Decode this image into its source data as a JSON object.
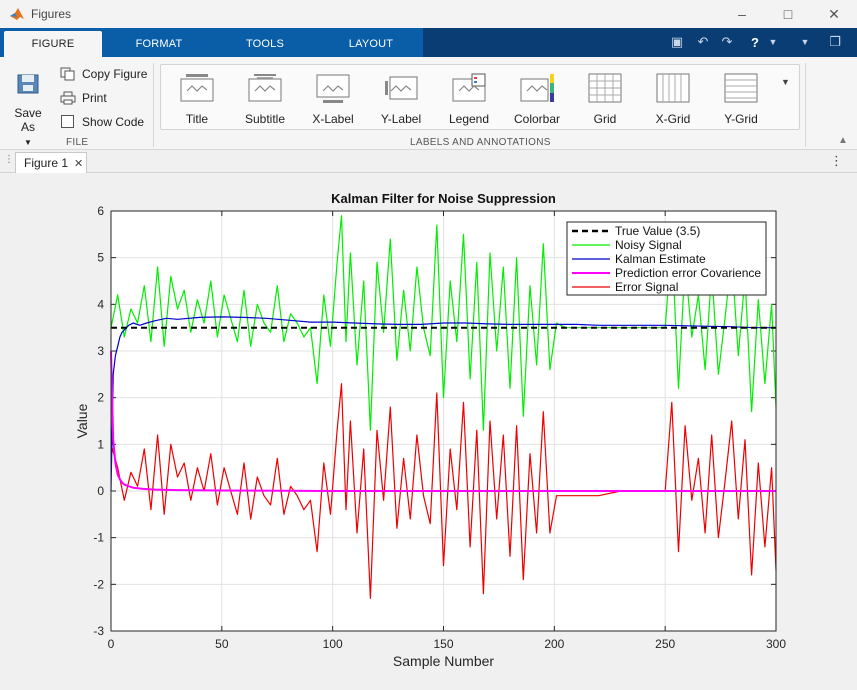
{
  "window": {
    "title": "Figures",
    "min_icon": "minimize-icon",
    "max_icon": "maximize-icon",
    "close_icon": "close-icon"
  },
  "tabs": [
    {
      "label": "FIGURE",
      "active": true
    },
    {
      "label": "FORMAT"
    },
    {
      "label": "TOOLS"
    },
    {
      "label": "LAYOUT"
    }
  ],
  "quick_access": [
    "save-icon",
    "undo-icon",
    "redo-icon",
    "help-icon",
    "collapse-icon",
    "undock-icon"
  ],
  "file_group": {
    "label": "FILE",
    "save_as": "Save As",
    "copy_figure": "Copy Figure",
    "print": "Print",
    "show_code": "Show Code"
  },
  "labels_group": {
    "label": "LABELS AND ANNOTATIONS",
    "items": [
      "Title",
      "Subtitle",
      "X-Label",
      "Y-Label",
      "Legend",
      "Colorbar",
      "Grid",
      "X-Grid",
      "Y-Grid"
    ]
  },
  "document_tab": {
    "label": "Figure 1"
  },
  "colors": {
    "true_value": "#000000",
    "noisy": "#00ff00",
    "kalman": "#0000cc",
    "pred_cov": "#ff00ff",
    "error": "#ff0000",
    "ribbon_blue": "#0a5ea8",
    "ribbon_dark": "#0b3d75"
  },
  "chart_data": {
    "type": "line",
    "title": "Kalman Filter for Noise Suppression",
    "xlabel": "Sample Number",
    "ylabel": "Value",
    "xlim": [
      0,
      300
    ],
    "ylim": [
      -3,
      6
    ],
    "xticks": [
      0,
      50,
      100,
      150,
      200,
      250,
      300
    ],
    "yticks": [
      -3,
      -2,
      -1,
      0,
      1,
      2,
      3,
      4,
      5,
      6
    ],
    "grid": true,
    "legend": "top-right",
    "series": [
      {
        "name": "True Value (3.5)",
        "style": "dashed",
        "color": "#000000",
        "x": [
          0,
          300
        ],
        "y": [
          3.5,
          3.5
        ]
      },
      {
        "name": "Noisy Signal",
        "color": "#00ee00",
        "x": [
          0,
          3,
          6,
          9,
          12,
          15,
          18,
          21,
          24,
          27,
          30,
          33,
          36,
          39,
          42,
          45,
          48,
          51,
          54,
          57,
          60,
          63,
          66,
          69,
          72,
          75,
          78,
          81,
          84,
          87,
          90,
          93,
          96,
          99,
          102,
          104,
          106,
          108,
          111,
          114,
          117,
          120,
          123,
          126,
          129,
          132,
          135,
          138,
          141,
          144,
          147,
          150,
          153,
          156,
          159,
          162,
          165,
          168,
          171,
          174,
          177,
          180,
          183,
          186,
          189,
          192,
          195,
          198,
          201,
          205,
          210,
          220,
          230,
          240,
          250,
          253,
          256,
          259,
          262,
          265,
          268,
          271,
          274,
          277,
          280,
          283,
          286,
          289,
          292,
          295,
          298,
          300
        ],
        "y": [
          3.5,
          4.2,
          3.3,
          3.9,
          3.6,
          4.4,
          3.2,
          4.8,
          3.1,
          4.6,
          3.9,
          4.3,
          3.4,
          4.1,
          3.6,
          4.5,
          3.3,
          4.2,
          3.7,
          3.2,
          4.3,
          3.1,
          4.0,
          3.6,
          3.4,
          4.4,
          3.2,
          3.8,
          3.6,
          3.3,
          3.5,
          2.3,
          4.2,
          3.1,
          4.9,
          5.9,
          3.2,
          5.1,
          2.7,
          4.5,
          1.3,
          4.9,
          3.4,
          5.4,
          2.8,
          4.3,
          3.0,
          4.8,
          3.5,
          2.9,
          5.7,
          2.0,
          4.5,
          3.2,
          5.5,
          2.4,
          4.9,
          1.3,
          5.1,
          3.0,
          4.8,
          2.2,
          5.0,
          1.6,
          4.4,
          2.7,
          5.3,
          2.6,
          3.6,
          3.5,
          3.5,
          3.5,
          3.5,
          3.5,
          3.5,
          5.4,
          2.2,
          4.9,
          3.3,
          4.2,
          2.6,
          4.7,
          2.5,
          3.7,
          5.0,
          2.9,
          4.6,
          1.7,
          4.1,
          2.3,
          4.0,
          1.8
        ]
      },
      {
        "name": "Kalman Estimate",
        "color": "#0000cc",
        "x": [
          0,
          1,
          2,
          3,
          4,
          5,
          6,
          7,
          8,
          10,
          13,
          16,
          20,
          25,
          30,
          40,
          50,
          60,
          70,
          80,
          90,
          100,
          110,
          120,
          130,
          140,
          150,
          160,
          170,
          180,
          190,
          200,
          210,
          220,
          230,
          240,
          250,
          260,
          270,
          280,
          290,
          300
        ],
        "y": [
          0,
          2.5,
          2.9,
          3.1,
          3.3,
          3.4,
          3.45,
          3.5,
          3.55,
          3.6,
          3.55,
          3.6,
          3.65,
          3.7,
          3.68,
          3.72,
          3.73,
          3.72,
          3.7,
          3.66,
          3.62,
          3.62,
          3.6,
          3.58,
          3.57,
          3.57,
          3.6,
          3.6,
          3.58,
          3.57,
          3.57,
          3.57,
          3.57,
          3.55,
          3.55,
          3.55,
          3.55,
          3.54,
          3.53,
          3.52,
          3.5,
          3.5
        ]
      },
      {
        "name": "Prediction error Covarience",
        "color": "#ff00ff",
        "x": [
          0,
          1,
          2,
          3,
          4,
          5,
          6,
          8,
          10,
          14,
          20,
          30,
          50,
          100,
          150,
          200,
          250,
          300
        ],
        "y": [
          3.0,
          1.1,
          0.6,
          0.35,
          0.25,
          0.18,
          0.14,
          0.1,
          0.07,
          0.05,
          0.03,
          0.02,
          0.01,
          0.0,
          0.0,
          0.0,
          0.0,
          0.0
        ]
      },
      {
        "name": "Error Signal",
        "color": "#ee0000",
        "x": [
          0,
          3,
          6,
          9,
          12,
          15,
          18,
          21,
          24,
          27,
          30,
          33,
          36,
          39,
          42,
          45,
          48,
          51,
          54,
          57,
          60,
          63,
          66,
          69,
          72,
          75,
          78,
          81,
          84,
          87,
          90,
          93,
          96,
          99,
          102,
          104,
          106,
          108,
          111,
          114,
          117,
          120,
          123,
          126,
          129,
          132,
          135,
          138,
          141,
          144,
          147,
          150,
          153,
          156,
          159,
          162,
          165,
          168,
          171,
          174,
          177,
          180,
          183,
          186,
          189,
          192,
          195,
          198,
          201,
          205,
          210,
          220,
          230,
          240,
          250,
          253,
          256,
          259,
          262,
          265,
          268,
          271,
          274,
          277,
          280,
          283,
          286,
          289,
          292,
          295,
          298,
          300
        ],
        "y": [
          1.0,
          0.5,
          -0.2,
          0.4,
          0.1,
          0.9,
          -0.4,
          1.2,
          -0.5,
          1.0,
          0.3,
          0.6,
          -0.2,
          0.5,
          0.0,
          0.8,
          -0.3,
          0.5,
          0.0,
          -0.5,
          0.6,
          -0.6,
          0.3,
          -0.1,
          -0.3,
          0.7,
          -0.5,
          0.1,
          -0.1,
          -0.4,
          -0.2,
          -1.3,
          0.6,
          -0.5,
          1.3,
          2.3,
          -0.4,
          1.5,
          -0.9,
          0.9,
          -2.3,
          1.3,
          -0.2,
          1.8,
          -0.8,
          0.7,
          -0.6,
          1.2,
          -0.1,
          -0.7,
          2.1,
          -1.6,
          0.9,
          -0.4,
          1.9,
          -1.2,
          1.3,
          -2.2,
          1.5,
          -0.6,
          1.2,
          -1.4,
          1.4,
          -1.9,
          0.8,
          -0.9,
          1.7,
          -0.9,
          -0.1,
          -0.1,
          -0.1,
          -0.1,
          0.0,
          0.0,
          0.0,
          1.9,
          -1.3,
          1.4,
          -0.2,
          0.7,
          -0.9,
          1.2,
          -1.0,
          0.2,
          1.5,
          -0.6,
          1.1,
          -1.8,
          0.6,
          -1.2,
          0.5,
          -1.7
        ]
      }
    ]
  }
}
